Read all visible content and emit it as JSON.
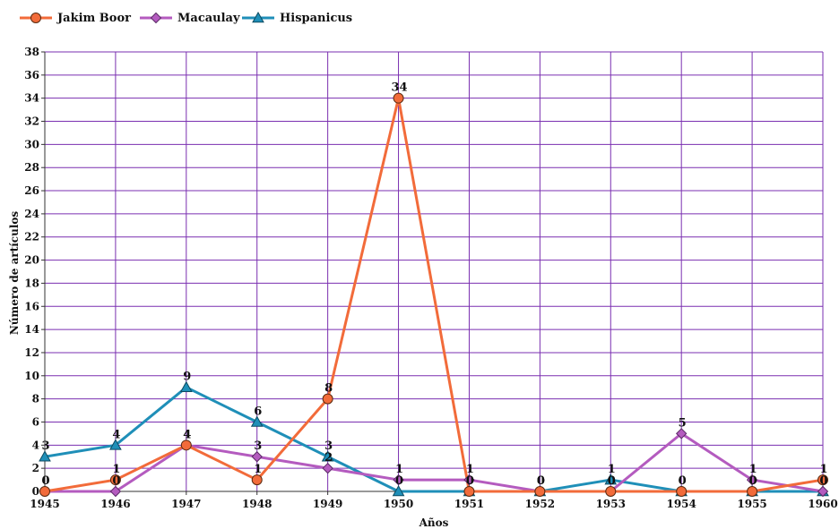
{
  "chart_data": {
    "type": "line",
    "title": "",
    "xlabel": "Años",
    "ylabel": "Número de artículos",
    "categories": [
      "1945",
      "1946",
      "1947",
      "1948",
      "1949",
      "1950",
      "1951",
      "1952",
      "1953",
      "1954",
      "1955",
      "1960"
    ],
    "ylim": [
      0,
      38
    ],
    "yticks": [
      0,
      2,
      4,
      6,
      8,
      10,
      12,
      14,
      16,
      18,
      20,
      22,
      24,
      26,
      28,
      30,
      32,
      34,
      36,
      38
    ],
    "grid": true,
    "legend_position": "top-left",
    "series": [
      {
        "name": "Jakim Boor",
        "color": "#f26b3a",
        "marker": "circle",
        "values": [
          0,
          1,
          4,
          1,
          8,
          34,
          0,
          0,
          0,
          0,
          0,
          1
        ]
      },
      {
        "name": "Macaulay",
        "color": "#b45bbf",
        "marker": "diamond",
        "values": [
          0,
          0,
          4,
          3,
          2,
          1,
          1,
          0,
          0,
          5,
          1,
          0
        ]
      },
      {
        "name": "Hispanicus",
        "color": "#1f8fb8",
        "marker": "triangle",
        "values": [
          3,
          4,
          9,
          6,
          3,
          0,
          0,
          0,
          1,
          0,
          0,
          0
        ]
      }
    ],
    "grid_color": "#7a2fb0"
  }
}
